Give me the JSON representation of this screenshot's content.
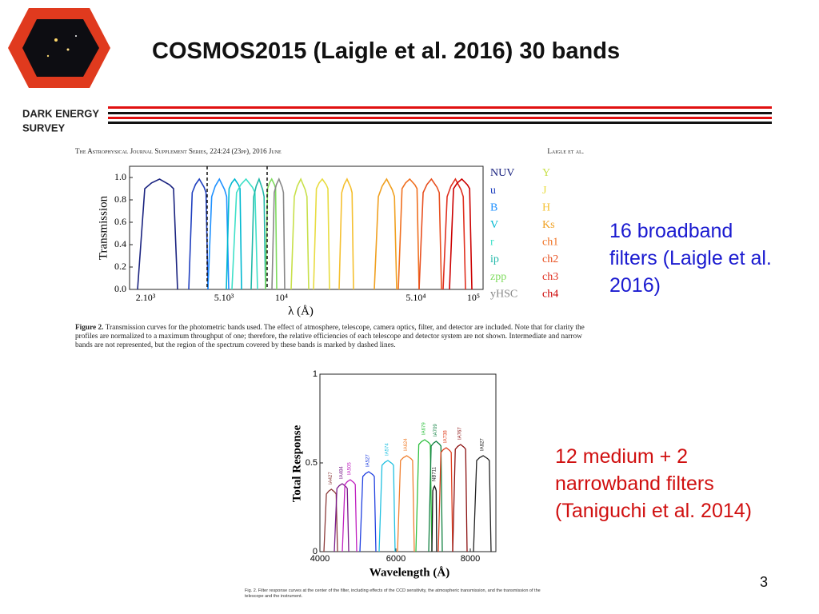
{
  "header": {
    "title": "COSMOS2015 (Laigle et al. 2016) 30 bands",
    "logo_lines": [
      "DARK ENERGY",
      "SURVEY"
    ]
  },
  "figure1": {
    "running_head_left": "The Astrophysical Journal Supplement Series, 224:24 (23pp), 2016 June",
    "running_head_right": "Laigle et al.",
    "y_label": "Transmission",
    "x_label": "λ (Å)",
    "yticks": [
      "1.0",
      "0.8",
      "0.6",
      "0.4",
      "0.2",
      "0.0"
    ],
    "xticks": [
      "2.10³",
      "5.10³",
      "10⁴",
      "5.10⁴",
      "10⁵"
    ],
    "legend": [
      {
        "name": "NUV",
        "color": "#1a2380"
      },
      {
        "name": "u",
        "color": "#1f3fbf"
      },
      {
        "name": "B",
        "color": "#1e90ff"
      },
      {
        "name": "V",
        "color": "#00b8d0"
      },
      {
        "name": "r",
        "color": "#3ee0c8"
      },
      {
        "name": "ip",
        "color": "#20b8a8"
      },
      {
        "name": "zpp",
        "color": "#80dc60"
      },
      {
        "name": "yHSC",
        "color": "#888888"
      },
      {
        "name": "Y",
        "color": "#c8e04a"
      },
      {
        "name": "J",
        "color": "#e8dc40"
      },
      {
        "name": "H",
        "color": "#f5c030"
      },
      {
        "name": "Ks",
        "color": "#f0a020"
      },
      {
        "name": "ch1",
        "color": "#f07020"
      },
      {
        "name": "ch2",
        "color": "#e85020"
      },
      {
        "name": "ch3",
        "color": "#e03020"
      },
      {
        "name": "ch4",
        "color": "#cc0000"
      }
    ],
    "caption_label": "Figure 2.",
    "caption": "Transmission curves for the photometric bands used. The effect of atmosphere, telescope, camera optics, filter, and detector are included. Note that for clarity the profiles are normalized to a maximum throughput of one; therefore, the relative efficiencies of each telescope and detector system are not shown. Intermediate and narrow bands are not represented, but the region of the spectrum covered by these bands is marked by dashed lines."
  },
  "note1": "16 broadband filters (Laigle et al. 2016)",
  "figure2": {
    "y_label": "Total Response",
    "x_label": "Wavelength (Å)",
    "yticks": [
      "1",
      "0.5",
      "0"
    ],
    "xticks": [
      "4000",
      "6000",
      "8000"
    ],
    "filters": [
      {
        "name": "IA427",
        "color": "#8b3a3a"
      },
      {
        "name": "IA484",
        "color": "#7a1a8a"
      },
      {
        "name": "IA505",
        "color": "#c020c0"
      },
      {
        "name": "IA527",
        "color": "#2040e0"
      },
      {
        "name": "IA574",
        "color": "#20c0e0"
      },
      {
        "name": "IA624",
        "color": "#f08030"
      },
      {
        "name": "IA679",
        "color": "#30c040"
      },
      {
        "name": "IA709",
        "color": "#108040"
      },
      {
        "name": "NB711",
        "color": "#111111"
      },
      {
        "name": "IA738",
        "color": "#e04020"
      },
      {
        "name": "IA767",
        "color": "#8b1010"
      },
      {
        "name": "IA827",
        "color": "#222222"
      }
    ],
    "caption": "Fig. 2. Filter response curves at the center of the filter, including effects of the CCD sensitivity, the atmospheric transmission, and the transmission of the telescope and the instrument."
  },
  "note2": "12 medium + 2 narrowband filters (Taniguchi et al. 2014)",
  "page_number": "3"
}
